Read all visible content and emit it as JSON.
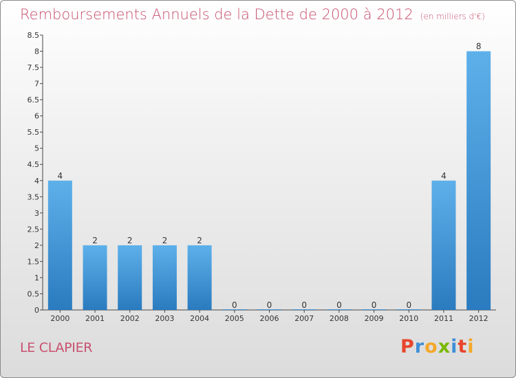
{
  "page": {
    "title": "Remboursements Annuels de la Dette de 2000 à 2012",
    "subtitle": "(en milliers d'€)",
    "commune": "LE CLAPIER",
    "logo": "Proxiti"
  },
  "colors": {
    "title": "#c8506e",
    "bar_top": "#5eb0ea",
    "bar_bottom": "#2a7bbf",
    "logo_letters": [
      "#e8452c",
      "#3f8fd8",
      "#f4a82b",
      "#7ab800",
      "#3f8fd8",
      "#e8452c",
      "#f4a82b"
    ]
  },
  "chart_data": {
    "type": "bar",
    "title": "Remboursements Annuels de la Dette de 2000 à 2012",
    "subtitle": "(en milliers d'€)",
    "xlabel": "",
    "ylabel": "",
    "categories": [
      "2000",
      "2001",
      "2002",
      "2003",
      "2004",
      "2005",
      "2006",
      "2007",
      "2008",
      "2009",
      "2010",
      "2011",
      "2012"
    ],
    "values": [
      4,
      2,
      2,
      2,
      2,
      0,
      0,
      0,
      0,
      0,
      0,
      4,
      8
    ],
    "data_labels": [
      "4",
      "2",
      "2",
      "2",
      "2",
      "0",
      "0",
      "0",
      "0",
      "0",
      "0",
      "4",
      "8"
    ],
    "ylim": [
      0,
      8.5
    ],
    "yticks": [
      "0",
      "0.5",
      "1",
      "1.5",
      "2",
      "2.5",
      "3",
      "3.5",
      "4",
      "4.5",
      "5",
      "5.5",
      "6",
      "6.5",
      "7",
      "7.5",
      "8",
      "8.5"
    ],
    "grid": false,
    "legend": "none"
  }
}
